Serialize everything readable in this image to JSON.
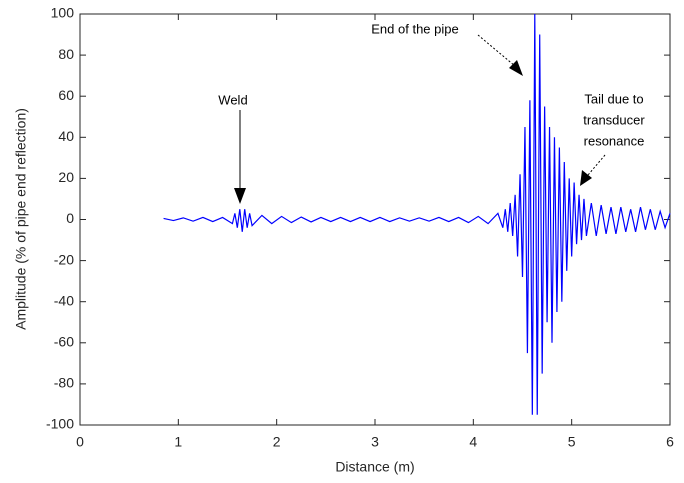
{
  "chart_data": {
    "type": "line",
    "xlabel": "Distance (m)",
    "ylabel": "Amplitude (% of pipe end reflection)",
    "annotations": [
      "Weld",
      "End of the pipe",
      [
        "Tail due to",
        "transducer",
        "resonance"
      ]
    ],
    "xlim": [
      0,
      6
    ],
    "xticks": [
      0,
      1,
      2,
      3,
      4,
      5,
      6
    ],
    "ylim": [
      -100,
      100
    ],
    "yticks": [
      -100,
      -80,
      -60,
      -40,
      -20,
      0,
      20,
      40,
      60,
      80,
      100
    ],
    "grid": false,
    "series": [
      {
        "color": "#0000ff",
        "x": [
          0.85,
          0.95,
          1.05,
          1.15,
          1.25,
          1.35,
          1.45,
          1.55,
          1.575,
          1.6,
          1.625,
          1.65,
          1.675,
          1.7,
          1.725,
          1.75,
          1.85,
          1.95,
          2.05,
          2.15,
          2.25,
          2.35,
          2.45,
          2.55,
          2.65,
          2.75,
          2.85,
          2.95,
          3.05,
          3.15,
          3.25,
          3.35,
          3.45,
          3.55,
          3.65,
          3.75,
          3.85,
          3.95,
          4.05,
          4.15,
          4.25,
          4.3,
          4.325,
          4.35,
          4.375,
          4.4,
          4.425,
          4.45,
          4.475,
          4.5,
          4.525,
          4.55,
          4.575,
          4.6,
          4.625,
          4.65,
          4.675,
          4.7,
          4.725,
          4.75,
          4.775,
          4.8,
          4.825,
          4.85,
          4.875,
          4.9,
          4.925,
          4.95,
          4.975,
          5.0,
          5.025,
          5.05,
          5.075,
          5.1,
          5.125,
          5.15,
          5.2,
          5.25,
          5.3,
          5.35,
          5.4,
          5.45,
          5.5,
          5.55,
          5.6,
          5.65,
          5.7,
          5.75,
          5.8,
          5.85,
          5.9,
          5.95,
          6.0
        ],
        "values": [
          0.5,
          -0.5,
          0.8,
          -0.8,
          1,
          -1,
          1,
          -2,
          3,
          -4,
          5,
          -6,
          5,
          -4,
          3,
          -3,
          2,
          -2,
          1.5,
          -1.5,
          1.2,
          -1.2,
          1,
          -1,
          1,
          -1,
          1,
          -1,
          1,
          -1,
          0.8,
          -0.8,
          0.8,
          -0.8,
          1,
          -1,
          1,
          -1.5,
          1.5,
          -2,
          3,
          -4,
          5,
          -6,
          8,
          -8,
          12,
          -18,
          22,
          -28,
          45,
          -65,
          58,
          -95,
          100,
          -95,
          90,
          -75,
          55,
          -50,
          45,
          -60,
          40,
          -45,
          35,
          -40,
          28,
          -25,
          20,
          -18,
          18,
          -12,
          12,
          -10,
          10,
          -8,
          8,
          -8,
          7,
          -7,
          6,
          -7,
          6,
          -6,
          5,
          -6,
          6,
          -5,
          5,
          -5,
          4,
          -4,
          3
        ]
      }
    ]
  }
}
